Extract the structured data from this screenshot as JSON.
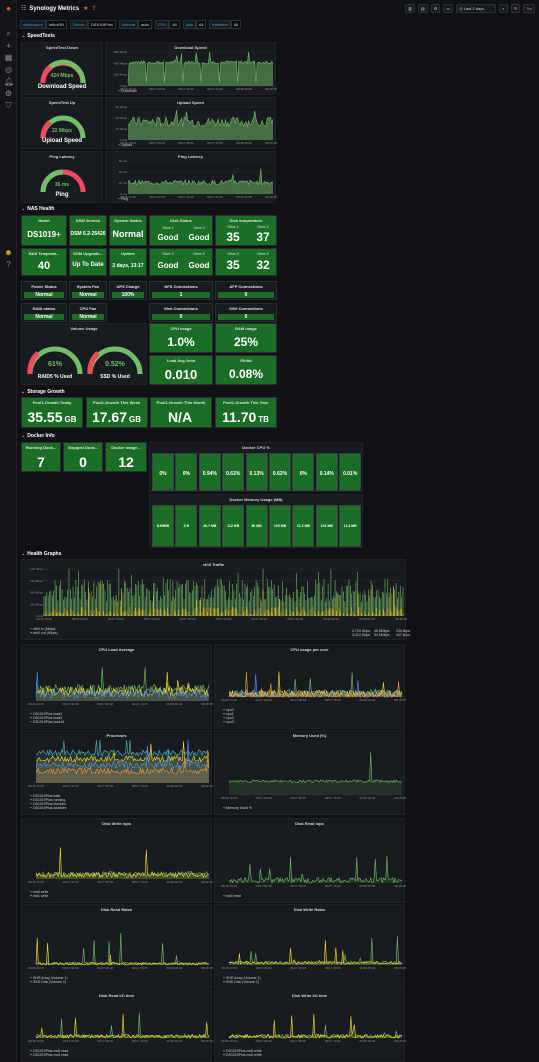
{
  "header": {
    "title": "Synology Metrics",
    "times": "Last 2 days",
    "refresh": "5m"
  },
  "vars": [
    {
      "k": "datasource",
      "v": "InfluxDB"
    },
    {
      "k": "Server",
      "v": "DS1019Plus"
    },
    {
      "k": "Interval",
      "v": "auto"
    },
    {
      "k": "CPU",
      "v": "All"
    },
    {
      "k": "disk",
      "v": "All"
    },
    {
      "k": "interface",
      "v": "All"
    }
  ],
  "rows": {
    "speed": "SpeedTests",
    "nas": "NAS Health",
    "storage": "Storage Growth",
    "docker": "Docker Info",
    "health": "Health Graphs"
  },
  "speedtest": {
    "down_title": "SpeedTest Down",
    "down_val": "424 Mbps",
    "down_label": "Download Speed",
    "up_title": "SpeedTest Up",
    "up_val": "22 Mbps",
    "up_label": "Upload Speed",
    "ping_title": "Ping Latency",
    "ping_val": "35 ms",
    "ping_label": "Ping",
    "dl_chart": "Download Speed",
    "ul_chart": "Upload Speed",
    "ping_chart": "Ping Latency",
    "dl_leg": "Download",
    "ul_leg": "Upload",
    "ping_leg": "Ping"
  },
  "nas": {
    "model_t": "Model",
    "model": "DS1019+",
    "dsm_t": "DSM Version",
    "dsm": "DSM 6.2-25426",
    "sys_t": "System Status",
    "sys": "Normal",
    "disk_t": "Disk Status",
    "disk": [
      {
        "n": "Drive 1",
        "v": "Good"
      },
      {
        "n": "Drive 2",
        "v": "Good"
      },
      {
        "n": "Drive 3",
        "v": "Good"
      },
      {
        "n": "Drive 5",
        "v": "Good"
      }
    ],
    "temp_t": "Disk temperature",
    "temp": [
      {
        "n": "Drive 1",
        "v": "35"
      },
      {
        "n": "Drive 2",
        "v": "37"
      },
      {
        "n": "Drive 3",
        "v": "35"
      },
      {
        "n": "Drive 5",
        "v": "32"
      }
    ],
    "nastemp_t": "NAS Temperat...",
    "nastemp": "40",
    "upg_t": "DSM Upgrade...",
    "upg": "Up To Date",
    "uptime_t": "Uptime",
    "uptime": "2 days, 13:17",
    "power_t": "Power Status",
    "power": "Normal",
    "fan_t": "System Fan",
    "fan": "Normal",
    "ups_t": "UPS Charge",
    "ups": "100%",
    "nfs_t": "NFS Connections",
    "nfs": "1",
    "afp_t": "AFP Connections",
    "afp": "0",
    "raid_t": "RAID status",
    "raid": "Normal",
    "cpufan_t": "CPU Fan",
    "cpufan": "Normal",
    "web_t": "Web Connections",
    "web": "0",
    "ssh_t": "SSH Connections",
    "ssh": "0",
    "vol_t": "Volume Usage",
    "raid_pct": "61%",
    "raid_lbl": "RAID5 % Used",
    "ssd_pct": "0.52%",
    "ssd_lbl": "SSD % Used",
    "cpu_t": "CPU usage",
    "cpu": "1.0%",
    "ram_t": "RAM usage",
    "ram": "25%",
    "load_t": "Load Avg 1min",
    "load": "0.010",
    "eth_t": "Ethbit",
    "eth": "0.08%"
  },
  "storage": [
    {
      "t": "Pool1-Growth Today",
      "v": "35.55",
      "u": "GB"
    },
    {
      "t": "Pool1-Growth This Week",
      "v": "17.67",
      "u": "GB"
    },
    {
      "t": "Pool1-Growth This Month",
      "v": "N/A",
      "u": ""
    },
    {
      "t": "Pool1-Growth This Year",
      "v": "11.70",
      "u": "TB"
    }
  ],
  "docker": {
    "running_t": "Running Dock...",
    "running": "7",
    "stopped_t": "Stopped Dock...",
    "stopped": "0",
    "images_t": "Docker Image...",
    "images": "12",
    "cpu_t": "Docker CPU %",
    "cpu": [
      "0%",
      "0%",
      "0.94%",
      "0.63%",
      "0.13%",
      "0.62%",
      "0%",
      "0.14%",
      "0.01%"
    ],
    "mem_t": "Docker Memory Usage (MB)",
    "mem": [
      "8.69MB",
      "5 B",
      "46.7 MB",
      "112 MB",
      "80 MB",
      "105 MB",
      "11.3 MB",
      "103 MB",
      "11.3 MB"
    ]
  },
  "graphs": {
    "eth_t": "eth0 Traffic",
    "eth_leg": [
      "eth0 in (Mbps)",
      "eth0 out (Mbps)"
    ],
    "eth_vals": [
      "2.793 Gbps",
      "46.5Mbps",
      "230 kbps",
      "3.413 Gbps",
      "34.9Mbps",
      "447 kbps"
    ],
    "cpuload_t": "CPU Load Average",
    "cpucore_t": "CPU usage per core",
    "proc_t": "Processes",
    "mem_t": "Memory Used (%)",
    "dwi_t": "Disk Write iops",
    "dri_t": "Disk Read iops",
    "drr_t": "Disk Read Rates",
    "dwr_t": "Disk Write Rates",
    "drio_t": "Disk Read I/O time",
    "dwio_t": "Disk Write I/O time",
    "cpuload_leg": [
      "DS1019Plus load1",
      "DS1019Plus load5",
      "DS1019Plus load15"
    ],
    "cpucore_leg": [
      "cpu0",
      "cpu1",
      "cpu2",
      "cpu3"
    ],
    "proc_leg": [
      "DS1019Plus total",
      "DS1019Plus running",
      "DS1019Plus blocked",
      "DS1019Plus zombies"
    ],
    "mem_leg": [
      "Memory Used %"
    ],
    "dwi_leg": [
      "md0 write",
      "md1 write"
    ],
    "dri_leg": [
      "md0 read"
    ],
    "drr_leg": [
      "SHR Array (Volume 1)",
      "SSD Disk (Volume 2)"
    ],
    "dwr_leg": [
      "SHR Array (Volume 1)",
      "SSD Disk (Volume 2)"
    ],
    "drio_leg": [
      "DS1019Plus md0 read",
      "DS1019Plus md1 read"
    ],
    "dwio_leg": [
      "DS1019Plus md0 write",
      "DS1019Plus md1 write"
    ],
    "time_ticks": [
      "06/16 16:00",
      "06/16 20:00",
      "06/17 00:00",
      "06/17 04:00",
      "06/17 08:00",
      "06/17 12:00",
      "06/17 16:00",
      "06/17 20:00",
      "06/18 00:00",
      "06/18 04:00",
      "06/18 08:00"
    ],
    "eth_y": [
      "1.00 Gbps",
      "750 Mbps",
      "500 Mbps",
      "250 Mbps",
      "0 bps"
    ],
    "dl_y": [
      "600 Mbps",
      "400 Mbps",
      "200 Mbps",
      "0 bps"
    ],
    "ul_y": [
      "30 Mbps",
      "20 Mbps",
      "10 Mbps",
      "0 bps"
    ],
    "ping_y": [
      "60 ms",
      "40 ms",
      "20 ms",
      "0 ms"
    ]
  },
  "colors": {
    "green": "#73bf69",
    "yellow": "#fade2a",
    "blue": "#5794f2",
    "orange": "#ff9830",
    "red": "#f2495c",
    "teal": "#58b3b8",
    "purple": "#b877d9"
  }
}
